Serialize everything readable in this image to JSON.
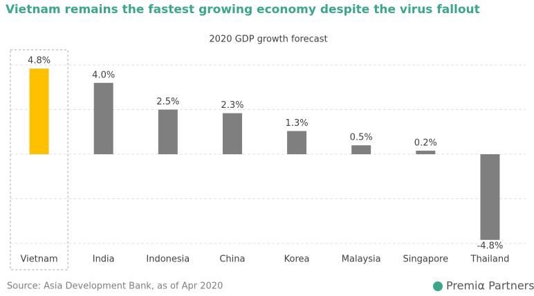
{
  "chart_data": {
    "type": "bar",
    "title": "Vietnam remains the fastest growing economy despite the virus fallout",
    "subtitle": "2020 GDP growth forecast",
    "categories": [
      "Vietnam",
      "India",
      "Indonesia",
      "China",
      "Korea",
      "Malaysia",
      "Singapore",
      "Thailand"
    ],
    "values": [
      4.8,
      4.0,
      2.5,
      2.3,
      1.3,
      0.5,
      0.2,
      -4.8
    ],
    "value_labels": [
      "4.8%",
      "4.0%",
      "2.5%",
      "2.3%",
      "1.3%",
      "0.5%",
      "0.2%",
      "-4.8%"
    ],
    "colors": [
      "#ffc000",
      "#7f7f7f",
      "#7f7f7f",
      "#7f7f7f",
      "#7f7f7f",
      "#7f7f7f",
      "#7f7f7f",
      "#7f7f7f"
    ],
    "ylim": [
      -5,
      5
    ],
    "yticks": [
      -5,
      -2.5,
      0,
      2.5,
      5
    ],
    "grid": true,
    "source": "Source: Asia Development Bank, as of Apr 2020",
    "logo": "Premiα Partners"
  }
}
